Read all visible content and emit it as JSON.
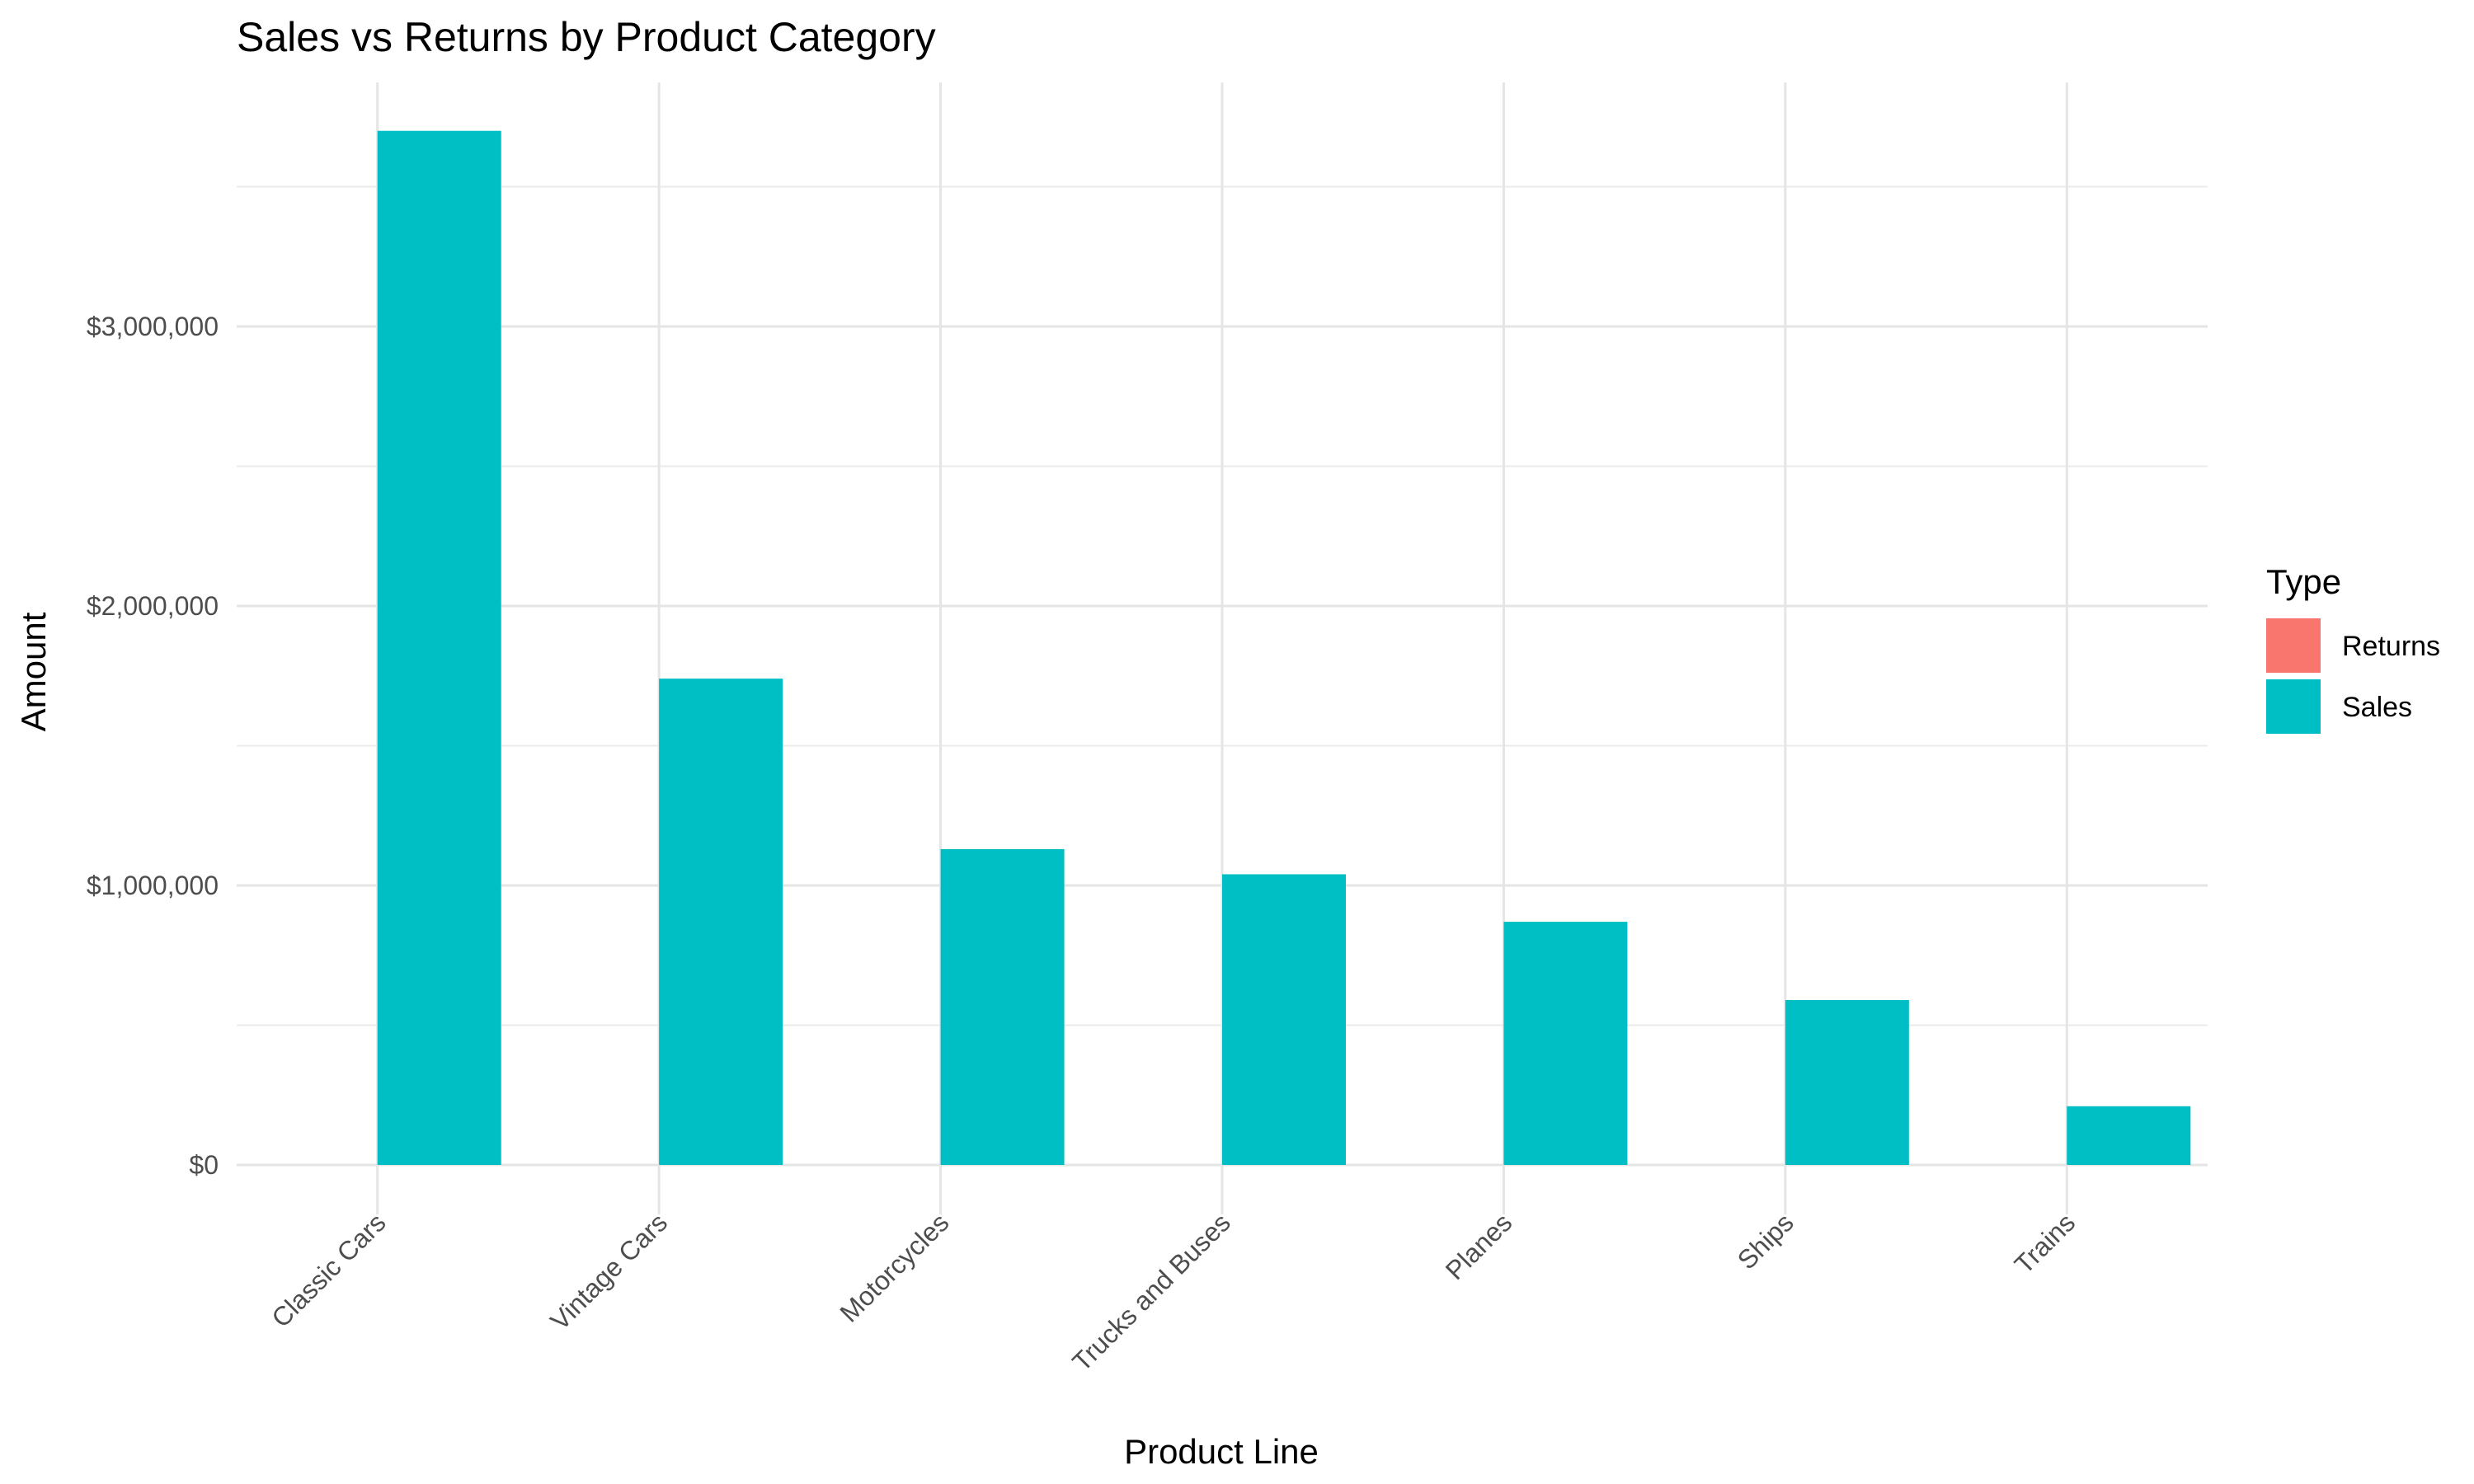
{
  "chart_data": {
    "type": "bar",
    "title": "Sales vs Returns by Product Category",
    "xlabel": "Product Line",
    "ylabel": "Amount",
    "categories": [
      "Classic Cars",
      "Vintage Cars",
      "Motorcycles",
      "Trucks and Buses",
      "Planes",
      "Ships",
      "Trains"
    ],
    "series": [
      {
        "name": "Returns",
        "color": "#F8766D",
        "values": [
          0,
          0,
          0,
          0,
          0,
          0,
          0
        ]
      },
      {
        "name": "Sales",
        "color": "#00BFC4",
        "values": [
          3700000,
          1740000,
          1130000,
          1040000,
          870000,
          590000,
          210000
        ]
      }
    ],
    "y_ticks": [
      0,
      1000000,
      2000000,
      3000000
    ],
    "y_tick_labels": [
      "$0",
      "$1,000,000",
      "$2,000,000",
      "$3,000,000"
    ],
    "ylim": [
      0,
      3700000
    ],
    "grid": true,
    "legend": {
      "title": "Type",
      "position": "right"
    }
  }
}
